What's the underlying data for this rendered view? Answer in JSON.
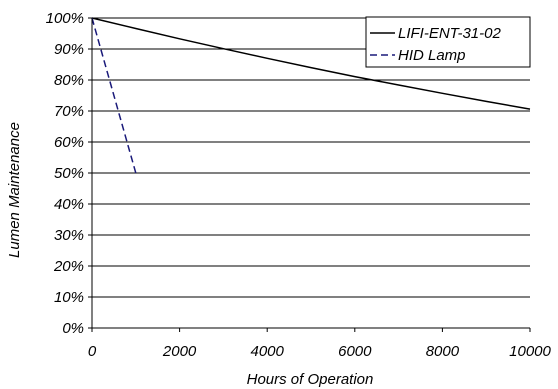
{
  "chart_data": {
    "type": "line",
    "xlabel": "Hours of Operation",
    "ylabel": "Lumen Maintenance",
    "xlim": [
      0,
      10000
    ],
    "ylim": [
      0,
      100
    ],
    "x_ticks": [
      0,
      2000,
      4000,
      6000,
      8000,
      10000
    ],
    "x_tick_labels": [
      "0",
      "2000",
      "4000",
      "6000",
      "8000",
      "10000"
    ],
    "y_ticks": [
      0,
      10,
      20,
      30,
      40,
      50,
      60,
      70,
      80,
      90,
      100
    ],
    "y_tick_labels": [
      "0%",
      "10%",
      "20%",
      "30%",
      "40%",
      "50%",
      "60%",
      "70%",
      "80%",
      "90%",
      "100%"
    ],
    "grid": "horizontal",
    "legend_position": "top-right",
    "series": [
      {
        "name": "LIFI-ENT-31-02",
        "color": "#000000",
        "style": "solid",
        "x": [
          0,
          1000,
          2000,
          3000,
          4000,
          5000,
          6000,
          7000,
          8000,
          9000,
          10000
        ],
        "y": [
          100,
          96.6,
          93.3,
          90.1,
          87.0,
          84.0,
          81.1,
          78.4,
          75.7,
          73.1,
          70.6
        ]
      },
      {
        "name": "HID Lamp",
        "color": "#1a1a7a",
        "style": "dashed",
        "x": [
          0,
          1000
        ],
        "y": [
          100,
          50
        ]
      }
    ]
  }
}
